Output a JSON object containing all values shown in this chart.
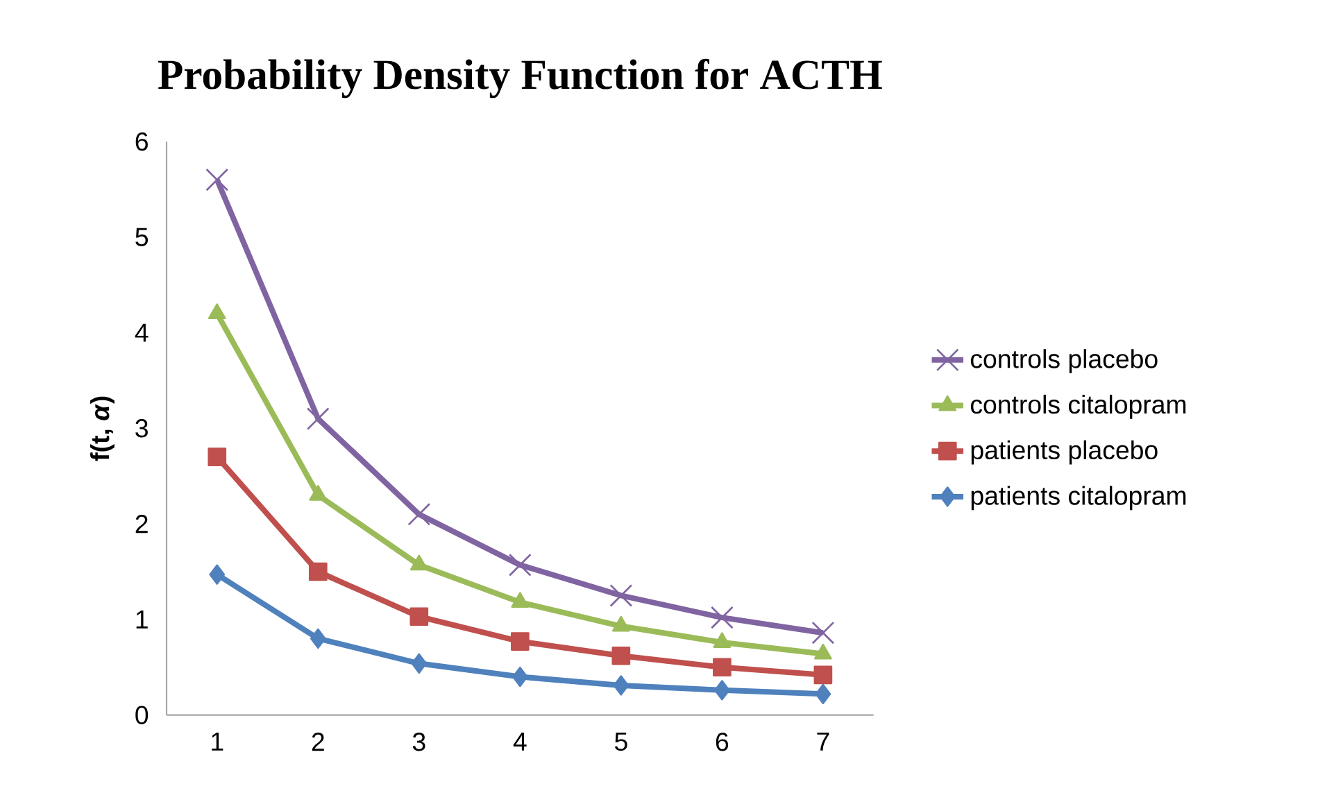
{
  "chart_data": {
    "type": "line",
    "title": "Probability Density Function for ACTH",
    "ylabel": "f(t, *α*)",
    "categories": [
      "1",
      "2",
      "3",
      "4",
      "5",
      "6",
      "7"
    ],
    "series": [
      {
        "name": "controls placebo",
        "color": "#8064a2",
        "marker": "cross",
        "values": [
          5.6,
          3.1,
          2.1,
          1.57,
          1.25,
          1.02,
          0.86
        ]
      },
      {
        "name": "controls citalopram",
        "color": "#9bbb59",
        "marker": "triangle",
        "values": [
          4.2,
          2.3,
          1.57,
          1.18,
          0.93,
          0.76,
          0.64
        ]
      },
      {
        "name": "patients placebo",
        "color": "#c0504d",
        "marker": "square",
        "values": [
          2.7,
          1.5,
          1.03,
          0.77,
          0.62,
          0.5,
          0.42
        ]
      },
      {
        "name": "patients citalopram",
        "color": "#4f81bd",
        "marker": "diamond",
        "values": [
          1.47,
          0.8,
          0.54,
          0.4,
          0.31,
          0.26,
          0.22
        ]
      }
    ],
    "ylim": [
      0,
      6
    ],
    "yticks": [
      0,
      1,
      2,
      3,
      4,
      5,
      6
    ],
    "grid": false,
    "legend": "right",
    "line_style": "solid"
  }
}
